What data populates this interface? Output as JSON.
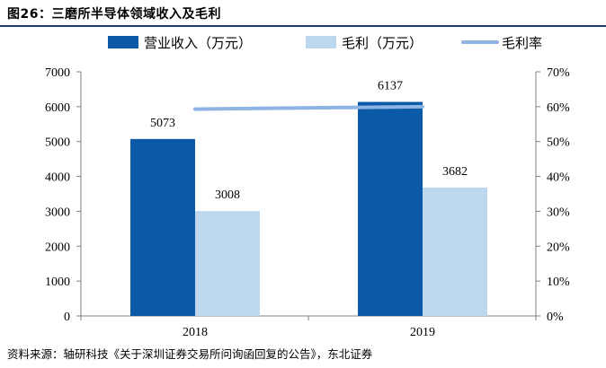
{
  "title": "图26：三磨所半导体领域收入及毛利",
  "source": "资料来源：轴研科技《关于深圳证券交易所问询函回复的公告》，东北证券",
  "colors": {
    "revenue": "#0a5aa8",
    "profit": "#bdd7ee",
    "margin": "#8db4e2",
    "axis": "#808080",
    "title_rule": "#1f3b73"
  },
  "chart_data": {
    "type": "bar",
    "categories": [
      "2018",
      "2019"
    ],
    "series": [
      {
        "name": "营业收入（万元）",
        "type": "bar",
        "axis": "left",
        "values": [
          5073,
          6137
        ],
        "color": "#0a5aa8"
      },
      {
        "name": "毛利（万元）",
        "type": "bar",
        "axis": "left",
        "values": [
          3008,
          3682
        ],
        "color": "#bdd7ee"
      },
      {
        "name": "毛利率",
        "type": "line",
        "axis": "right",
        "values": [
          0.593,
          0.6
        ],
        "color": "#8db4e2"
      }
    ],
    "data_labels": [
      [
        "5073",
        "6137"
      ],
      [
        "3008",
        "3682"
      ]
    ],
    "ylim_left": [
      0,
      7000
    ],
    "ylim_right": [
      0,
      0.7
    ],
    "yticks_left": [
      "0",
      "1000",
      "2000",
      "3000",
      "4000",
      "5000",
      "6000",
      "7000"
    ],
    "yticks_right": [
      "0%",
      "10%",
      "20%",
      "30%",
      "40%",
      "50%",
      "60%",
      "70%"
    ],
    "legend_position": "top",
    "grid": false
  }
}
